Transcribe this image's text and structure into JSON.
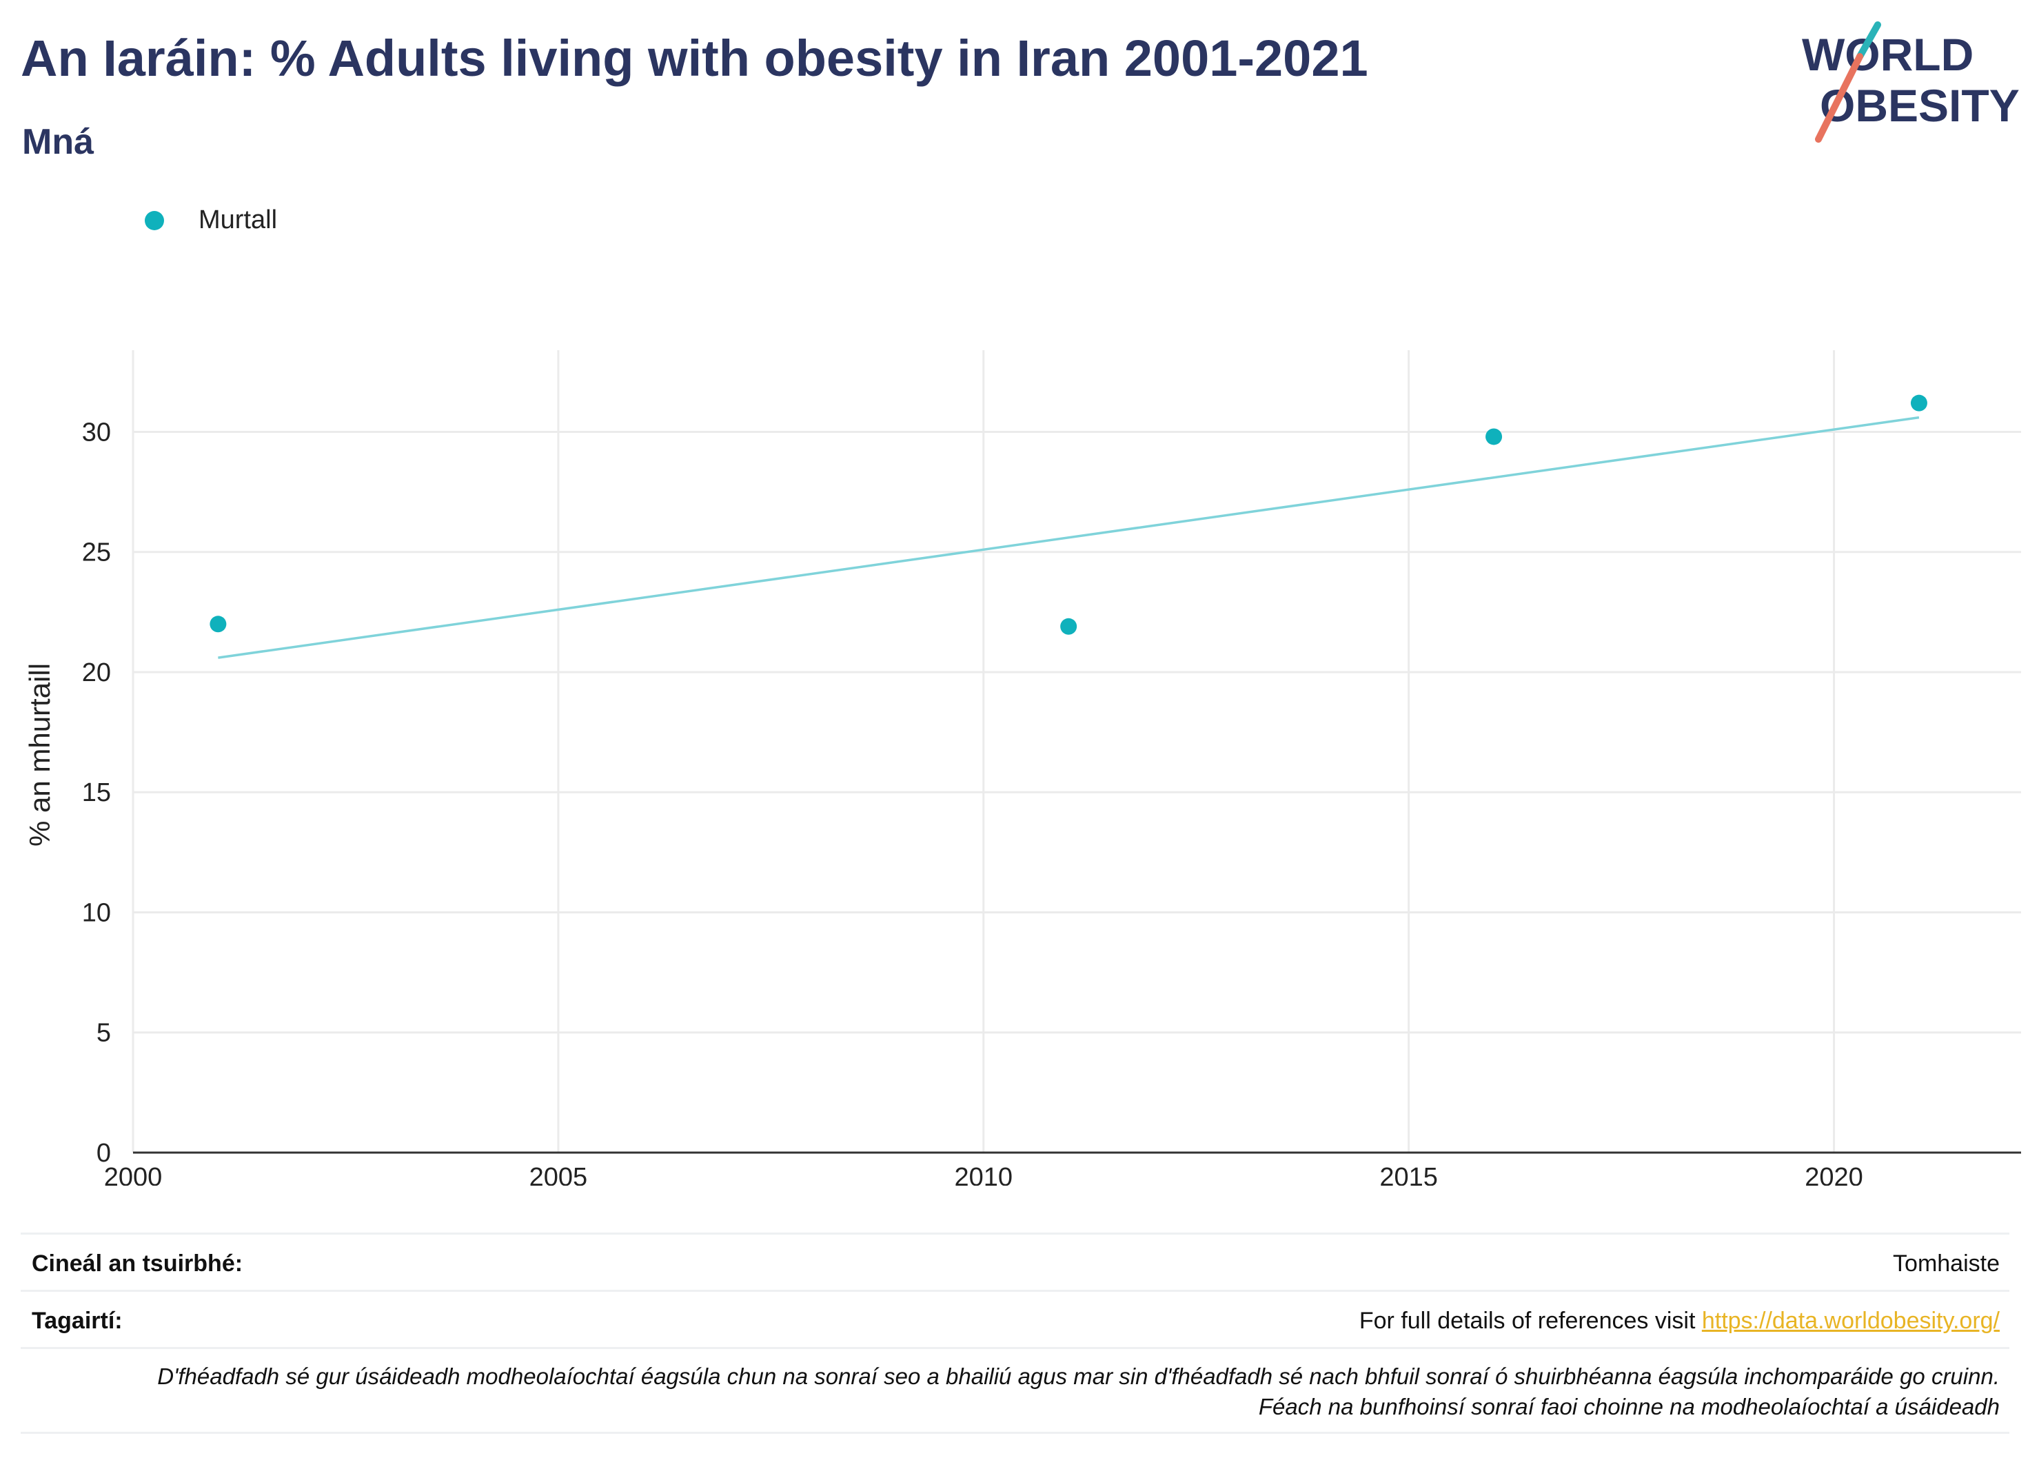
{
  "header": {
    "title": "An Iaráin: % Adults living with obesity in Iran 2001-2021",
    "subtitle": "Mná"
  },
  "logo": {
    "line1": "WORLD",
    "line2": "OBESITY",
    "colors": {
      "text": "#2b3561",
      "slash_top": "#2ab3b8",
      "slash_bottom": "#e8735e"
    }
  },
  "legend": {
    "items": [
      {
        "label": "Murtall",
        "color": "#0fb1bc"
      }
    ]
  },
  "chart_data": {
    "type": "scatter",
    "ylabel": "% an mhurtaill",
    "xlabel": "",
    "xlim": [
      2000,
      2022.2
    ],
    "ylim": [
      0,
      33.4
    ],
    "x_ticks": [
      2000,
      2005,
      2010,
      2015,
      2020
    ],
    "y_ticks": [
      0,
      5,
      10,
      15,
      20,
      25,
      30
    ],
    "grid": true,
    "legend_position": "top-left",
    "series": [
      {
        "name": "Murtall",
        "color": "#0fb1bc",
        "points": [
          {
            "x": 2001,
            "y": 22.0
          },
          {
            "x": 2011,
            "y": 21.9
          },
          {
            "x": 2016,
            "y": 29.8
          },
          {
            "x": 2021,
            "y": 31.2
          }
        ]
      }
    ],
    "trendline": {
      "color": "#7fd3da",
      "points": [
        {
          "x": 2001,
          "y": 20.6
        },
        {
          "x": 2021,
          "y": 30.6
        }
      ]
    }
  },
  "footer": {
    "survey_type_label": "Cineál an tsuirbhé:",
    "survey_type_value": "Tomhaiste",
    "references_label": "Tagairtí:",
    "references_text": "For full details of references visit ",
    "references_link": "https://data.worldobesity.org/",
    "note_line1": "D'fhéadfadh sé gur úsáideadh modheolaíochtaí éagsúla chun na sonraí seo a bhailiú agus mar sin d'fhéadfadh sé nach bhfuil sonraí ó shuirbhéanna éagsúla inchomparáide go cruinn.",
    "note_line2": "Féach na bunfhoinsí sonraí faoi choinne na modheolaíochtaí a úsáideadh"
  }
}
